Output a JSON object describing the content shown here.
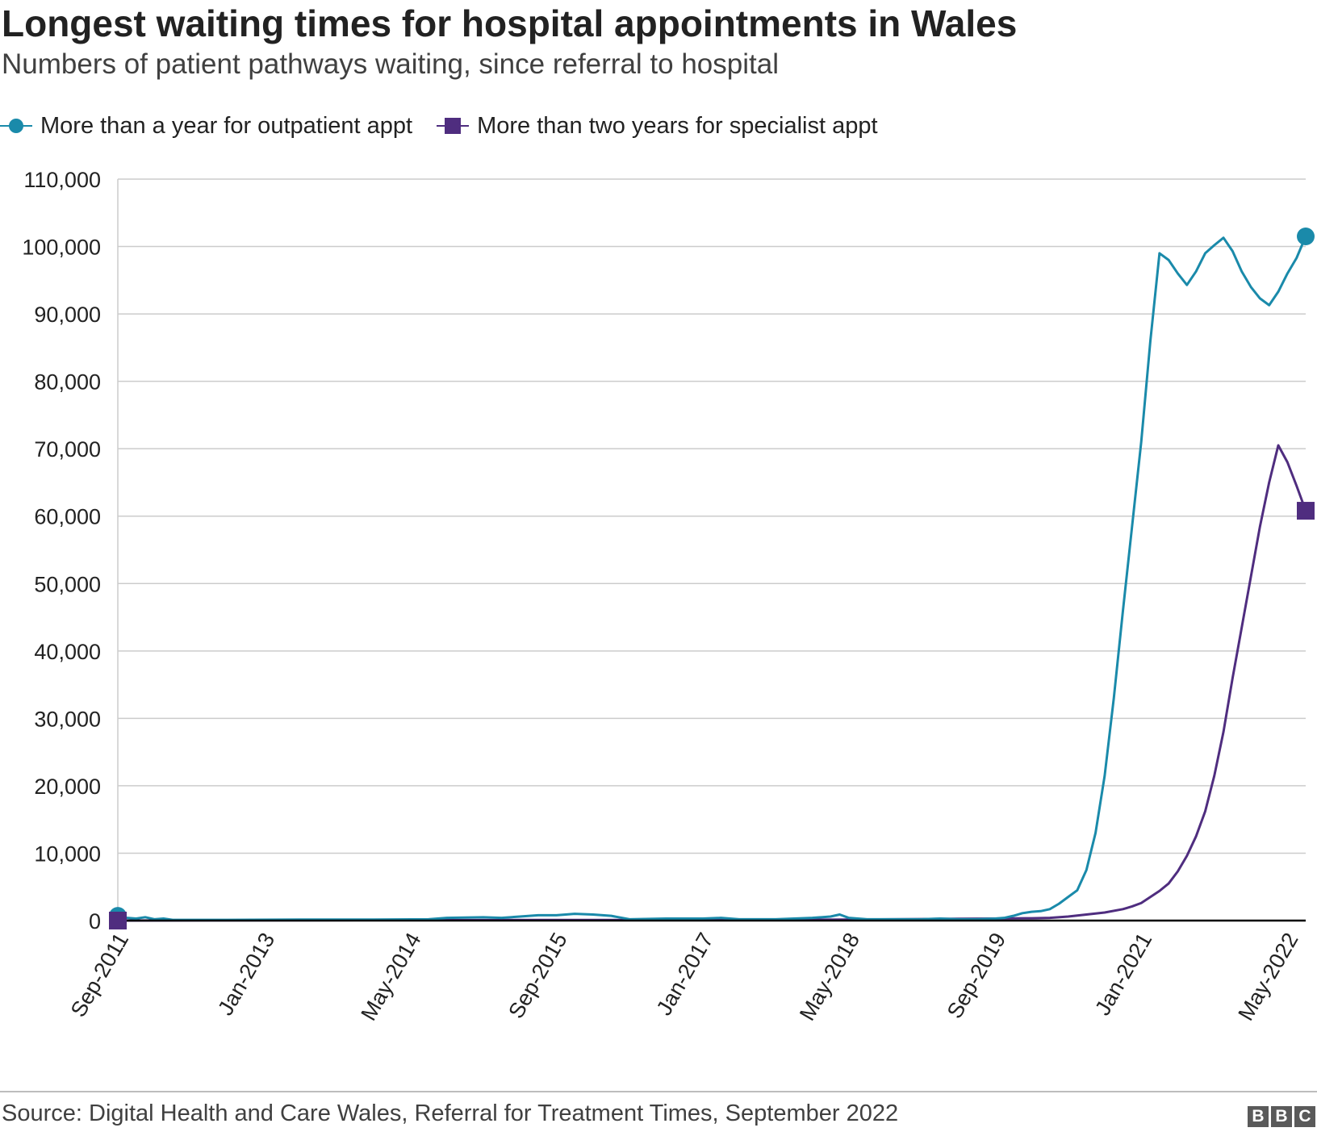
{
  "header": {
    "title": "Longest waiting times for hospital appointments in Wales",
    "subtitle": "Numbers of patient pathways waiting, since referral to hospital"
  },
  "footer": {
    "source": "Source: Digital Health and Care Wales, Referral for Treatment Times, September 2022",
    "logo_letters": [
      "B",
      "B",
      "C"
    ]
  },
  "colors": {
    "outpatient": "#1a8aaa",
    "specialist": "#4f2d7f",
    "grid": "#cccccc",
    "axis": "#000000"
  },
  "chart_data": {
    "type": "line",
    "title": "Longest waiting times for hospital appointments in Wales",
    "subtitle": "Numbers of patient pathways waiting, since referral to hospital",
    "xlabel": "",
    "ylabel": "",
    "ylim": [
      0,
      110000
    ],
    "yticks": [
      0,
      10000,
      20000,
      30000,
      40000,
      50000,
      60000,
      70000,
      80000,
      90000,
      100000,
      110000
    ],
    "ytick_labels": [
      "0",
      "10,000",
      "20,000",
      "30,000",
      "40,000",
      "50,000",
      "60,000",
      "70,000",
      "80,000",
      "90,000",
      "100,000",
      "110,000"
    ],
    "x_start": "Sep-2011",
    "x_end": "May-2022",
    "x_tick_labels": [
      "Sep-2011",
      "Jan-2013",
      "May-2014",
      "Sep-2015",
      "Jan-2017",
      "May-2018",
      "Sep-2019",
      "Jan-2021",
      "May-2022"
    ],
    "x_tick_month_index": [
      0,
      16,
      32,
      48,
      64,
      80,
      96,
      112,
      128
    ],
    "grid": true,
    "legend_position": "top-left",
    "series": [
      {
        "name": "More than a year for outpatient appt",
        "color": "#1a8aaa",
        "marker": "circle",
        "points": [
          [
            0,
            700
          ],
          [
            1,
            400
          ],
          [
            2,
            300
          ],
          [
            3,
            500
          ],
          [
            4,
            200
          ],
          [
            5,
            300
          ],
          [
            6,
            100
          ],
          [
            8,
            100
          ],
          [
            12,
            100
          ],
          [
            20,
            150
          ],
          [
            28,
            150
          ],
          [
            34,
            200
          ],
          [
            36,
            400
          ],
          [
            38,
            450
          ],
          [
            40,
            500
          ],
          [
            42,
            400
          ],
          [
            44,
            600
          ],
          [
            46,
            800
          ],
          [
            48,
            800
          ],
          [
            50,
            1000
          ],
          [
            52,
            900
          ],
          [
            54,
            700
          ],
          [
            56,
            200
          ],
          [
            60,
            300
          ],
          [
            64,
            300
          ],
          [
            66,
            400
          ],
          [
            68,
            200
          ],
          [
            72,
            200
          ],
          [
            76,
            400
          ],
          [
            78,
            600
          ],
          [
            79,
            900
          ],
          [
            80,
            400
          ],
          [
            82,
            200
          ],
          [
            88,
            200
          ],
          [
            90,
            300
          ],
          [
            92,
            200
          ],
          [
            94,
            200
          ],
          [
            96,
            300
          ],
          [
            97,
            400
          ],
          [
            98,
            700
          ],
          [
            99,
            1100
          ],
          [
            100,
            1300
          ],
          [
            101,
            1400
          ],
          [
            102,
            1700
          ],
          [
            103,
            2500
          ],
          [
            104,
            3500
          ],
          [
            105,
            4500
          ],
          [
            106,
            7500
          ],
          [
            107,
            13000
          ],
          [
            108,
            21500
          ],
          [
            109,
            33000
          ],
          [
            110,
            46000
          ],
          [
            111,
            58500
          ],
          [
            112,
            71000
          ],
          [
            113,
            86000
          ],
          [
            114,
            99000
          ],
          [
            115,
            98000
          ],
          [
            116,
            96000
          ],
          [
            117,
            94300
          ],
          [
            118,
            96300
          ],
          [
            119,
            99000
          ],
          [
            120,
            100200
          ],
          [
            121,
            101300
          ],
          [
            122,
            99300
          ],
          [
            123,
            96300
          ],
          [
            124,
            94000
          ],
          [
            125,
            92300
          ],
          [
            126,
            91300
          ],
          [
            127,
            93300
          ],
          [
            128,
            96000
          ],
          [
            129,
            98300
          ],
          [
            130,
            101500
          ]
        ]
      },
      {
        "name": "More than two years for specialist appt",
        "color": "#4f2d7f",
        "marker": "square",
        "points": [
          [
            0,
            0
          ],
          [
            20,
            50
          ],
          [
            40,
            80
          ],
          [
            60,
            100
          ],
          [
            80,
            150
          ],
          [
            90,
            250
          ],
          [
            96,
            300
          ],
          [
            100,
            350
          ],
          [
            102,
            400
          ],
          [
            104,
            600
          ],
          [
            106,
            900
          ],
          [
            108,
            1200
          ],
          [
            110,
            1700
          ],
          [
            111,
            2100
          ],
          [
            112,
            2600
          ],
          [
            113,
            3500
          ],
          [
            114,
            4400
          ],
          [
            115,
            5500
          ],
          [
            116,
            7300
          ],
          [
            117,
            9600
          ],
          [
            118,
            12500
          ],
          [
            119,
            16200
          ],
          [
            120,
            21500
          ],
          [
            121,
            28000
          ],
          [
            122,
            36000
          ],
          [
            123,
            43500
          ],
          [
            124,
            51000
          ],
          [
            125,
            58500
          ],
          [
            126,
            65000
          ],
          [
            127,
            70500
          ],
          [
            128,
            68000
          ],
          [
            129,
            64500
          ],
          [
            130,
            60800
          ]
        ]
      }
    ]
  }
}
